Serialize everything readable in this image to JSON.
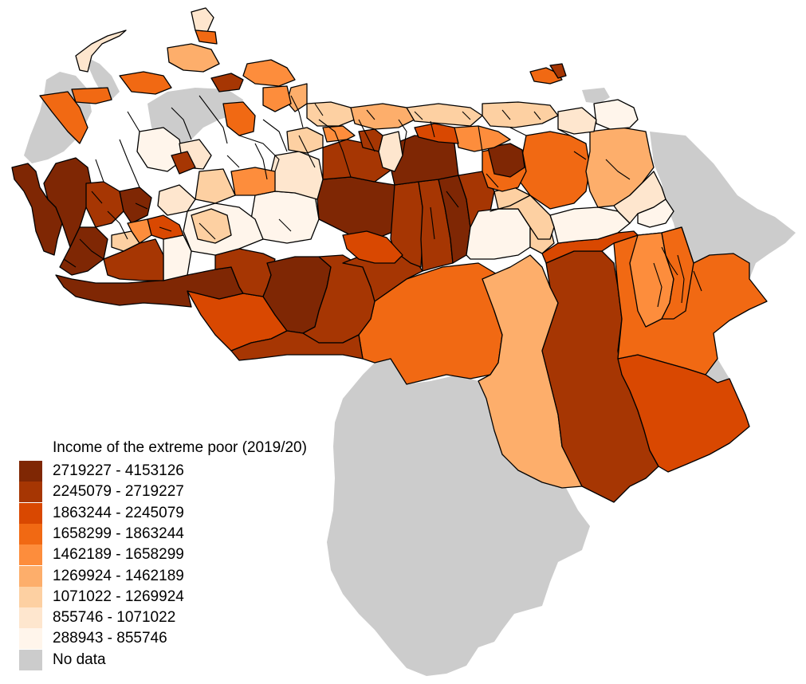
{
  "legend": {
    "title": "Income of the extreme poor (2019/20)",
    "items": [
      {
        "label": "2719227 - 4153126",
        "color": "#7f2704"
      },
      {
        "label": "2245079 - 2719227",
        "color": "#a63603"
      },
      {
        "label": "1863244 - 2245079",
        "color": "#d94801"
      },
      {
        "label": "1658299 - 1863244",
        "color": "#f16913"
      },
      {
        "label": "1462189 - 1658299",
        "color": "#fd8d3c"
      },
      {
        "label": "1269924 - 1462189",
        "color": "#fdae6b"
      },
      {
        "label": "1071022 - 1269924",
        "color": "#fdd0a2"
      },
      {
        "label": "855746 - 1071022",
        "color": "#fee6ce"
      },
      {
        "label": "288943 - 855746",
        "color": "#fff5eb"
      },
      {
        "label": "No data",
        "color": "#cccccc"
      }
    ]
  }
}
